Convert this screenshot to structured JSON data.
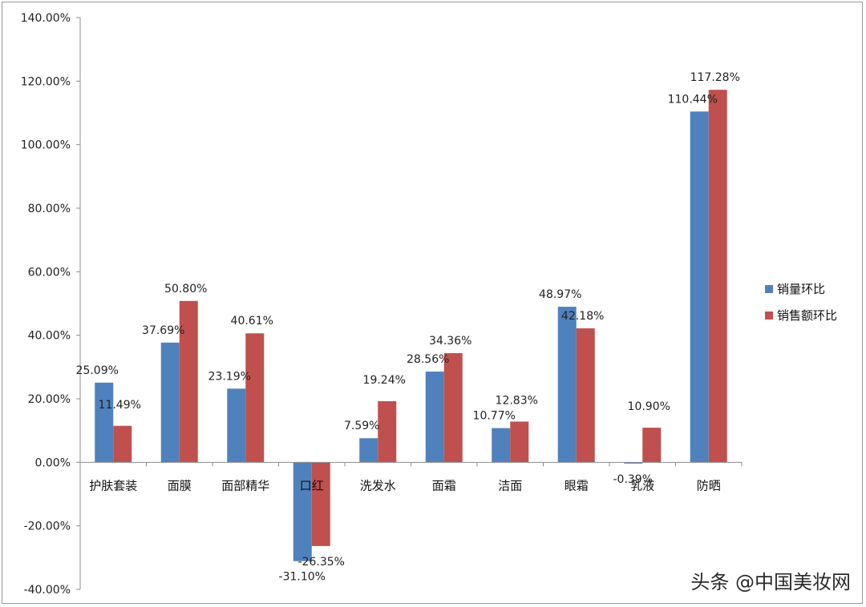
{
  "chart_data": {
    "type": "bar",
    "categories": [
      "护肤套装",
      "面膜",
      "面部精华",
      "口红",
      "洗发水",
      "面霜",
      "洁面",
      "眼霜",
      "乳液",
      "防晒"
    ],
    "series": [
      {
        "name": "销量环比",
        "color": "#4f81bd",
        "values": [
          25.09,
          37.69,
          23.19,
          -31.1,
          7.59,
          28.56,
          10.77,
          48.97,
          -0.39,
          110.44
        ],
        "labels": [
          "25.09%",
          "37.69%",
          "23.19%",
          "-31.10%",
          "7.59%",
          "28.56%",
          "10.77%",
          "48.97%",
          "-0.39%",
          "110.44%"
        ]
      },
      {
        "name": "销售额环比",
        "color": "#c0504d",
        "values": [
          11.49,
          50.8,
          40.61,
          -26.35,
          19.24,
          34.36,
          12.83,
          42.18,
          10.9,
          117.28
        ],
        "labels": [
          "11.49%",
          "50.80%",
          "40.61%",
          "-26.35%",
          "19.24%",
          "34.36%",
          "12.83%",
          "42.18%",
          "10.90%",
          "117.28%"
        ]
      }
    ],
    "ylim": [
      -40,
      140
    ],
    "yticks": [
      -40,
      -20,
      0,
      20,
      40,
      60,
      80,
      100,
      120,
      140
    ],
    "ytick_labels": [
      "-40.00%",
      "-20.00%",
      "0.00%",
      "20.00%",
      "40.00%",
      "60.00%",
      "80.00%",
      "100.00%",
      "120.00%",
      "140.00%"
    ],
    "grid": false,
    "legend_position": "right"
  },
  "watermark": "头条 @中国美妆网"
}
